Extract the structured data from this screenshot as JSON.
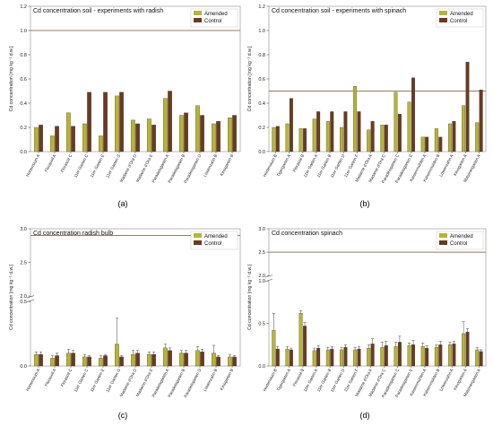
{
  "colors": {
    "amended": "#b8b431",
    "control": "#6b3a1d",
    "ref_line": "#a0785a"
  },
  "chart_data": [
    {
      "type": "bar",
      "panel": "(a)",
      "title": "Cd concentration soil - experiments with radish",
      "ylabel": "Cd concentration [mg kg⁻¹ d.w.]",
      "ylim": [
        0,
        1.2
      ],
      "yticks": [
        "0.0",
        "0.2",
        "0.4",
        "0.6",
        "0.8",
        "1.0",
        "1.2"
      ],
      "ref_line": 1.0,
      "legend": [
        "Amended",
        "Control"
      ],
      "categories": [
        "Hortensium A",
        "Florasoil A",
        "Florasoil C",
        "11er Garten C",
        "11er Garten E",
        "11er Garten G",
        "Madame d'Ora D",
        "Madame d'Ora E",
        "Paradeisgarten A",
        "Paradeisgarten B",
        "Paradeisgarten D",
        "Löwenzahn B",
        "Kinogarten B"
      ],
      "series": [
        {
          "name": "Amended",
          "values": [
            0.2,
            0.13,
            0.32,
            0.23,
            0.13,
            0.46,
            0.26,
            0.27,
            0.44,
            0.3,
            0.38,
            0.23,
            0.28
          ]
        },
        {
          "name": "Control",
          "values": [
            0.22,
            0.21,
            0.21,
            0.49,
            0.49,
            0.49,
            0.23,
            0.22,
            0.5,
            0.32,
            0.3,
            0.25,
            0.3
          ]
        }
      ]
    },
    {
      "type": "bar",
      "panel": "(b)",
      "title": "Cd concentration soil - experiments with spinach",
      "ylabel": "Cd concentration [mg kg⁻¹ d.w.]",
      "ylim": [
        0,
        1.2
      ],
      "yticks": [
        "0.0",
        "0.2",
        "0.4",
        "0.6",
        "0.8",
        "1.0",
        "1.2"
      ],
      "ref_line": 0.5,
      "legend": [
        "Amended",
        "Control"
      ],
      "categories": [
        "Hortensium B",
        "Tigergarten A",
        "Florasoil B",
        "11er Garten A",
        "11er Garten B",
        "11er Garten D",
        "11er Garten F",
        "Madame d'Ora A",
        "Madame d'Ora C",
        "Paradeisgarten C",
        "Paradeisgarten E",
        "Kaiserrmühlen A",
        "Kaiserrmühlen B",
        "Löwenzahn A",
        "Kinogarten A",
        "Matzinergarten A"
      ],
      "series": [
        {
          "name": "Amended",
          "values": [
            0.2,
            0.23,
            0.19,
            0.27,
            0.25,
            0.2,
            0.54,
            0.18,
            0.22,
            0.49,
            0.41,
            0.12,
            0.19,
            0.23,
            0.38,
            0.24
          ]
        },
        {
          "name": "Control",
          "values": [
            0.21,
            0.44,
            0.19,
            0.33,
            0.33,
            0.33,
            0.33,
            0.25,
            0.22,
            0.31,
            0.61,
            0.12,
            0.12,
            0.25,
            0.74,
            0.51
          ]
        }
      ]
    },
    {
      "type": "bar",
      "panel": "(c)",
      "title": "Cd concentration radish bulb",
      "ylabel": "Cd concentration [mg kg⁻¹ d.w.]",
      "ylim": [
        0,
        3.0
      ],
      "axis_break": [
        0.5,
        2.0
      ],
      "yticks_low": [
        "0.0",
        "0.5"
      ],
      "yticks_high": [
        "2.0",
        "2.5",
        "3.0"
      ],
      "ref_line": 2.9,
      "legend": [
        "Amended",
        "Control"
      ],
      "categories": [
        "Hortensium A",
        "Florasoil A",
        "Florasoil C",
        "11er Garten C",
        "11er Garten E",
        "11er Garten G",
        "Madame d'Ora D",
        "Madame d'Ora E",
        "Paradeisgarten A",
        "Paradeisgarten B",
        "Paradeisgarten D",
        "Löwenzahn B",
        "Kinogarten B"
      ],
      "series": [
        {
          "name": "Amended",
          "values": [
            0.09,
            0.06,
            0.1,
            0.07,
            0.06,
            0.17,
            0.09,
            0.09,
            0.14,
            0.1,
            0.12,
            0.1,
            0.07
          ]
        },
        {
          "name": "Control",
          "values": [
            0.09,
            0.08,
            0.1,
            0.07,
            0.08,
            0.07,
            0.1,
            0.09,
            0.12,
            0.1,
            0.11,
            0.07,
            0.07
          ]
        }
      ],
      "errors": [
        {
          "name": "Amended",
          "values": [
            0.02,
            0.02,
            0.03,
            0.02,
            0.02,
            0.2,
            0.03,
            0.02,
            0.03,
            0.02,
            0.03,
            0.06,
            0.02
          ]
        },
        {
          "name": "Control",
          "values": [
            0.02,
            0.02,
            0.02,
            0.01,
            0.01,
            0.01,
            0.02,
            0.02,
            0.02,
            0.02,
            0.02,
            0.01,
            0.01
          ]
        }
      ]
    },
    {
      "type": "bar",
      "panel": "(d)",
      "title": "Cd concentration spinach",
      "ylabel": "Cd concentration [mg kg⁻¹ d.w.]",
      "ylim": [
        0,
        3.0
      ],
      "axis_break": [
        1.0,
        2.0
      ],
      "yticks_low": [
        "0.0",
        "0.5",
        "1.0"
      ],
      "yticks_high": [
        "2.0",
        "2.5",
        "3.0"
      ],
      "ref_line": 2.5,
      "legend": [
        "Amended",
        "Control"
      ],
      "categories": [
        "Hortensium B",
        "Tigergarten A",
        "Florasoil B",
        "11er Garten A",
        "11er Garten B",
        "11er Garten D",
        "11er Garten F",
        "Madame d'Ora A",
        "Madame d'Ora C",
        "Paradeisgarten C",
        "Paradeisgarten E",
        "Kaiserrmühlen A",
        "Kaiserrmühlen B",
        "Löwenzahn A",
        "Kinogarten A",
        "Matzinergarten A"
      ],
      "series": [
        {
          "name": "Amended",
          "values": [
            0.42,
            0.2,
            0.62,
            0.18,
            0.19,
            0.19,
            0.19,
            0.21,
            0.22,
            0.23,
            0.24,
            0.23,
            0.22,
            0.25,
            0.38,
            0.19
          ]
        },
        {
          "name": "Control",
          "values": [
            0.2,
            0.19,
            0.47,
            0.21,
            0.2,
            0.22,
            0.2,
            0.26,
            0.24,
            0.28,
            0.25,
            0.21,
            0.25,
            0.26,
            0.4,
            0.17
          ]
        }
      ],
      "errors": [
        {
          "name": "Amended",
          "values": [
            0.2,
            0.03,
            0.03,
            0.03,
            0.03,
            0.03,
            0.03,
            0.04,
            0.06,
            0.05,
            0.03,
            0.04,
            0.03,
            0.03,
            0.14,
            0.03
          ]
        },
        {
          "name": "Control",
          "values": [
            0.03,
            0.02,
            0.04,
            0.03,
            0.03,
            0.03,
            0.03,
            0.06,
            0.05,
            0.07,
            0.05,
            0.03,
            0.04,
            0.03,
            0.04,
            0.02
          ]
        }
      ]
    }
  ]
}
